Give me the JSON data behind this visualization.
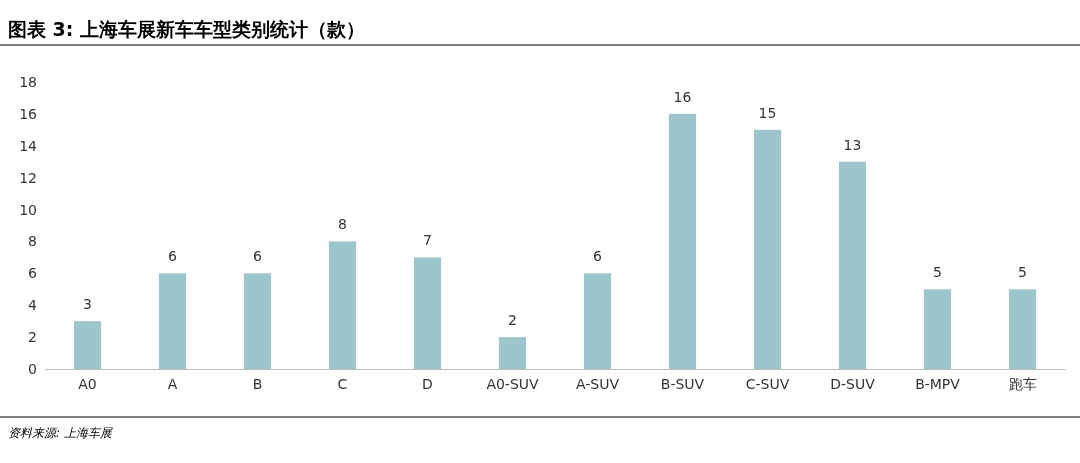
{
  "chart_data": {
    "type": "bar",
    "title": "图表 3: 上海车展新车车型类别统计（款）",
    "categories": [
      "A0",
      "A",
      "B",
      "C",
      "D",
      "A0-SUV",
      "A-SUV",
      "B-SUV",
      "C-SUV",
      "D-SUV",
      "B-MPV",
      "跑车"
    ],
    "values": [
      3,
      6,
      6,
      8,
      7,
      2,
      6,
      16,
      15,
      13,
      5,
      5
    ],
    "color": "#9dc6cc",
    "ylim": [
      0,
      18
    ],
    "yticks": [
      0,
      2,
      4,
      6,
      8,
      10,
      12,
      14,
      16,
      18
    ],
    "data_labels": true,
    "grid": false,
    "annotations": [
      "资料来源: 上海车展"
    ]
  }
}
